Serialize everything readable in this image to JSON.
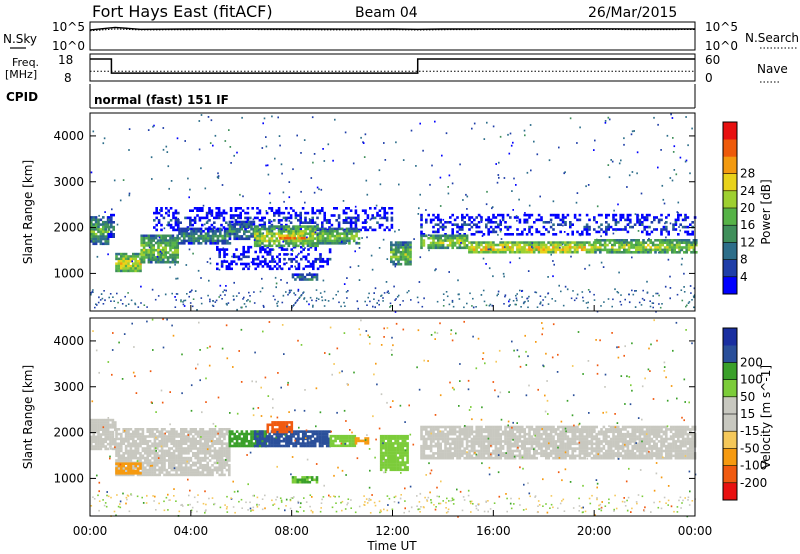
{
  "header": {
    "site": "Fort Hays East (fitACF)",
    "beam": "Beam 04",
    "date": "26/Mar/2015"
  },
  "top_panels": {
    "nsky_label": "N.Sky",
    "nsearch_label": "N.Search",
    "nsky_ticks": [
      "10^5",
      "10^0"
    ],
    "nsearch_ticks": [
      "10^5",
      "10^0"
    ],
    "freq_label_1": "Freq.",
    "freq_label_2": "[MHz]",
    "freq_ticks": [
      "18",
      "8"
    ],
    "nave_label": "Nave",
    "nave_ticks": [
      "60",
      "0"
    ],
    "cpid_label": "CPID",
    "cpid_value": "normal (fast) 151 IF"
  },
  "colors": {
    "power_bar": [
      "#0000ff",
      "#1f3ea8",
      "#2d6e8a",
      "#3f8f5a",
      "#56b347",
      "#9ed030",
      "#e8d21a",
      "#f39a10",
      "#ee5a0a",
      "#e81010"
    ],
    "velocity_bar": [
      "#e81010",
      "#f05a10",
      "#f69a10",
      "#f5c85a",
      "#c8c8c0",
      "#c8c8c0",
      "#7ccc3a",
      "#3aa02a",
      "#2a4f9a",
      "#1a2fa0"
    ]
  },
  "chart_data": [
    {
      "type": "line",
      "panel": "nsky-nsearch",
      "x_range_hours": [
        0,
        24
      ],
      "series": [
        {
          "name": "N.Sky",
          "x": [
            0,
            1,
            2,
            4,
            6,
            8,
            10,
            12,
            13,
            14,
            16,
            18,
            20,
            22,
            24
          ],
          "y": [
            6000,
            20000,
            8000,
            9000,
            9500,
            9000,
            8500,
            9000,
            8000,
            9000,
            9500,
            9500,
            10000,
            9000,
            9500
          ]
        },
        {
          "name": "N.Search",
          "x": [
            0,
            1,
            2,
            4,
            6,
            8,
            10,
            12,
            13,
            14,
            16,
            18,
            20,
            22,
            24
          ],
          "y": [
            4000,
            9000,
            6000,
            6500,
            7000,
            6500,
            6000,
            6500,
            5500,
            6500,
            7000,
            7000,
            7500,
            6500,
            7000
          ]
        }
      ]
    },
    {
      "type": "line",
      "panel": "freq-nave",
      "series": [
        {
          "name": "Freq.",
          "x": [
            0,
            0.85,
            0.85,
            13.0,
            13.0,
            24
          ],
          "y": [
            17.5,
            17.5,
            10.8,
            10.8,
            17.5,
            17.5
          ]
        },
        {
          "name": "Nave",
          "x": [
            0,
            1,
            4,
            8,
            12,
            16,
            20,
            24
          ],
          "y": [
            22,
            22,
            22,
            22,
            22,
            22,
            22,
            22
          ]
        }
      ]
    },
    {
      "type": "heatmap",
      "panel": "power",
      "title": "Power [dB]",
      "ylabel": "Slant Range [km]",
      "xlabel": "Time UT",
      "x_range_hours": [
        0,
        24
      ],
      "ylim": [
        180,
        4500
      ],
      "y_ticks": [
        1000,
        2000,
        3000,
        4000
      ],
      "colorbar_ticks": [
        "4",
        "8",
        "12",
        "16",
        "20",
        "24",
        "28"
      ],
      "colorbar_range": [
        0,
        32
      ],
      "bands": [
        {
          "x": [
            0.0,
            0.7
          ],
          "range": [
            1650,
            2250
          ],
          "value": 14
        },
        {
          "x": [
            0.7,
            0.95
          ],
          "range": [
            1800,
            2300
          ],
          "value": 10
        },
        {
          "x": [
            1.0,
            2.0
          ],
          "range": [
            1050,
            1450
          ],
          "value": 20
        },
        {
          "x": [
            2.0,
            3.5
          ],
          "range": [
            1250,
            1850
          ],
          "value": 17
        },
        {
          "x": [
            3.5,
            5.5
          ],
          "range": [
            1650,
            2000
          ],
          "value": 12
        },
        {
          "x": [
            5.5,
            6.5
          ],
          "range": [
            1750,
            2150
          ],
          "value": 11
        },
        {
          "x": [
            6.5,
            9.0
          ],
          "range": [
            1600,
            2050
          ],
          "value": 19
        },
        {
          "x": [
            7.5,
            8.5
          ],
          "range": [
            1750,
            1850
          ],
          "value": 27
        },
        {
          "x": [
            9.0,
            10.7
          ],
          "range": [
            1650,
            2000
          ],
          "value": 16
        },
        {
          "x": [
            8.0,
            9.0
          ],
          "range": [
            850,
            1000
          ],
          "value": 11
        },
        {
          "x": [
            11.9,
            12.7
          ],
          "range": [
            1200,
            1700
          ],
          "value": 16
        },
        {
          "x": [
            13.1,
            15.0
          ],
          "range": [
            1550,
            1850
          ],
          "value": 18
        },
        {
          "x": [
            15.0,
            20.0
          ],
          "range": [
            1450,
            1700
          ],
          "value": 22
        },
        {
          "x": [
            20.0,
            24.0
          ],
          "range": [
            1450,
            1750
          ],
          "value": 18
        }
      ],
      "halo": [
        {
          "x": [
            2.5,
            12.0
          ],
          "range": [
            1950,
            2450
          ],
          "value": 5
        },
        {
          "x": [
            13.1,
            24.0
          ],
          "range": [
            1850,
            2300
          ],
          "value": 6
        },
        {
          "x": [
            5.0,
            9.5
          ],
          "range": [
            1100,
            1600
          ],
          "value": 4
        }
      ]
    },
    {
      "type": "heatmap",
      "panel": "velocity",
      "title": "Velocity [m s^-1]",
      "ylabel": "Slant Range [km]",
      "xlabel": "Time UT",
      "x_range_hours": [
        0,
        24
      ],
      "ylim": [
        180,
        4500
      ],
      "y_ticks": [
        1000,
        2000,
        3000,
        4000
      ],
      "x_tick_labels": [
        "00:00",
        "04:00",
        "08:00",
        "12:00",
        "16:00",
        "20:00",
        "00:00"
      ],
      "colorbar_ticks": [
        "-200",
        "-100",
        "-50",
        "-15",
        "15",
        "50",
        "100",
        "200"
      ],
      "bands": [
        {
          "x": [
            0.0,
            1.0
          ],
          "range": [
            1650,
            2300
          ],
          "value": 0
        },
        {
          "x": [
            1.0,
            5.5
          ],
          "range": [
            1100,
            2100
          ],
          "value": 0
        },
        {
          "x": [
            1.0,
            2.0
          ],
          "range": [
            1100,
            1350
          ],
          "value": -60
        },
        {
          "x": [
            5.5,
            7.0
          ],
          "range": [
            1700,
            2050
          ],
          "value": 70
        },
        {
          "x": [
            6.5,
            9.5
          ],
          "range": [
            1700,
            2050
          ],
          "value": 150
        },
        {
          "x": [
            7.0,
            8.0
          ],
          "range": [
            2000,
            2250
          ],
          "value": -120
        },
        {
          "x": [
            9.5,
            10.5
          ],
          "range": [
            1700,
            1950
          ],
          "value": 40
        },
        {
          "x": [
            10.5,
            11.0
          ],
          "range": [
            1750,
            1900
          ],
          "value": -60
        },
        {
          "x": [
            8.0,
            9.0
          ],
          "range": [
            900,
            1050
          ],
          "value": 50
        },
        {
          "x": [
            11.5,
            12.6
          ],
          "range": [
            1200,
            1950
          ],
          "value": 40
        },
        {
          "x": [
            13.1,
            24.0
          ],
          "range": [
            1450,
            2150
          ],
          "value": 0
        }
      ]
    }
  ]
}
